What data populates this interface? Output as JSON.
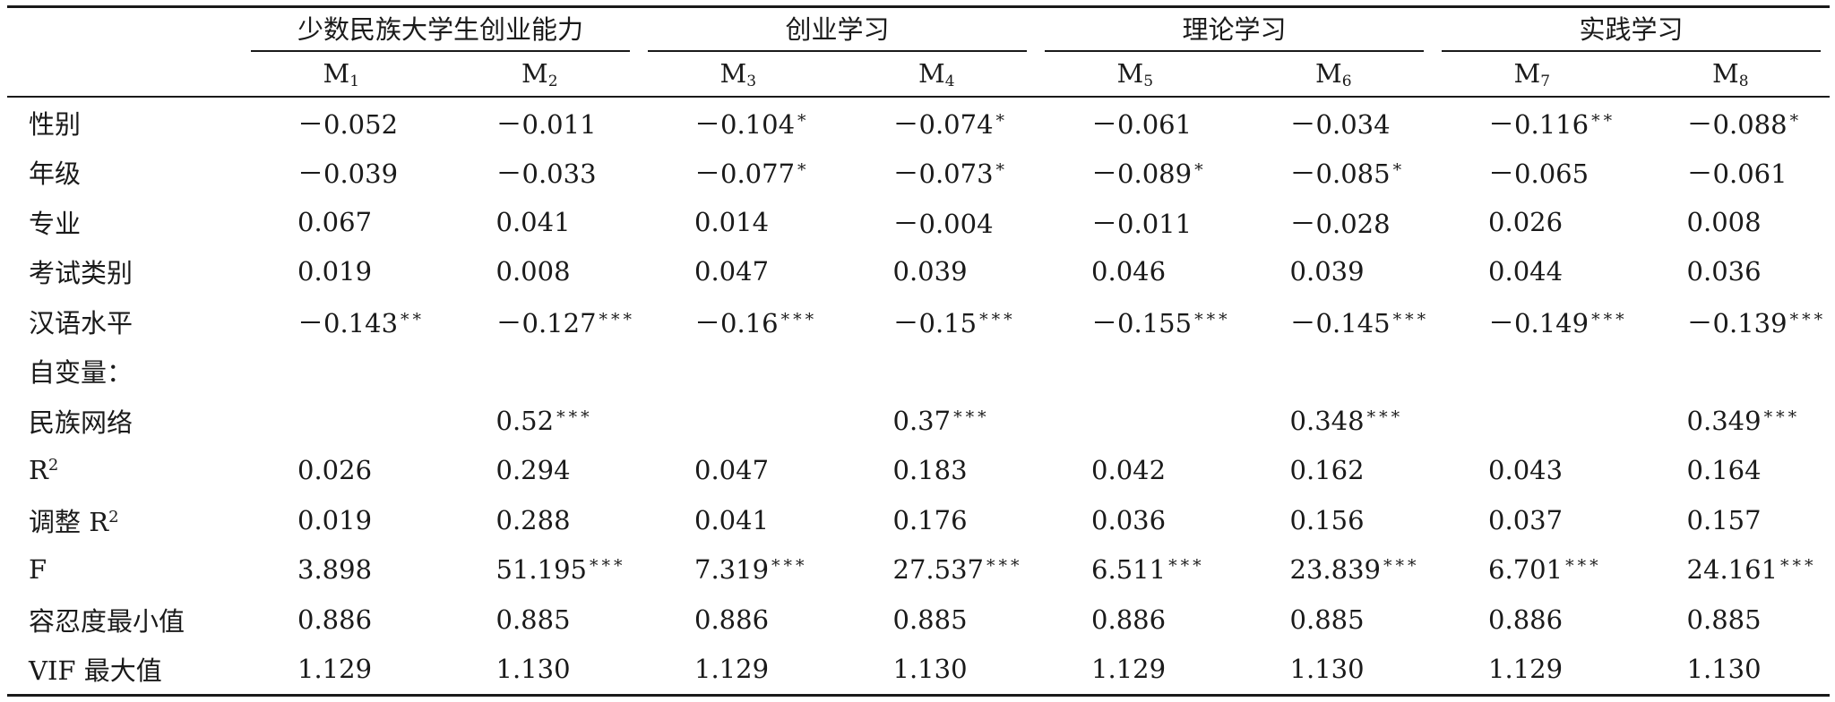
{
  "group_headers": [
    "少数民族大学生创业能力",
    "创业学习",
    "理论学习",
    "实践学习"
  ],
  "models": [
    {
      "letter": "M",
      "sub": "1"
    },
    {
      "letter": "M",
      "sub": "2"
    },
    {
      "letter": "M",
      "sub": "3"
    },
    {
      "letter": "M",
      "sub": "4"
    },
    {
      "letter": "M",
      "sub": "5"
    },
    {
      "letter": "M",
      "sub": "6"
    },
    {
      "letter": "M",
      "sub": "7"
    },
    {
      "letter": "M",
      "sub": "8"
    }
  ],
  "rows": [
    {
      "label": "性别",
      "sup": "",
      "cells": [
        {
          "v": "－0.052",
          "s": ""
        },
        {
          "v": "－0.011",
          "s": ""
        },
        {
          "v": "－0.104",
          "s": "*"
        },
        {
          "v": "－0.074",
          "s": "*"
        },
        {
          "v": "－0.061",
          "s": ""
        },
        {
          "v": "－0.034",
          "s": ""
        },
        {
          "v": "－0.116",
          "s": "**"
        },
        {
          "v": "－0.088",
          "s": "*"
        }
      ]
    },
    {
      "label": "年级",
      "sup": "",
      "cells": [
        {
          "v": "－0.039",
          "s": ""
        },
        {
          "v": "－0.033",
          "s": ""
        },
        {
          "v": "－0.077",
          "s": "*"
        },
        {
          "v": "－0.073",
          "s": "*"
        },
        {
          "v": "－0.089",
          "s": "*"
        },
        {
          "v": "－0.085",
          "s": "*"
        },
        {
          "v": "－0.065",
          "s": ""
        },
        {
          "v": "－0.061",
          "s": ""
        }
      ]
    },
    {
      "label": "专业",
      "sup": "",
      "cells": [
        {
          "v": "0.067",
          "s": ""
        },
        {
          "v": "0.041",
          "s": ""
        },
        {
          "v": "0.014",
          "s": ""
        },
        {
          "v": "－0.004",
          "s": ""
        },
        {
          "v": "－0.011",
          "s": ""
        },
        {
          "v": "－0.028",
          "s": ""
        },
        {
          "v": "0.026",
          "s": ""
        },
        {
          "v": "0.008",
          "s": ""
        }
      ]
    },
    {
      "label": "考试类别",
      "sup": "",
      "cells": [
        {
          "v": "0.019",
          "s": ""
        },
        {
          "v": "0.008",
          "s": ""
        },
        {
          "v": "0.047",
          "s": ""
        },
        {
          "v": "0.039",
          "s": ""
        },
        {
          "v": "0.046",
          "s": ""
        },
        {
          "v": "0.039",
          "s": ""
        },
        {
          "v": "0.044",
          "s": ""
        },
        {
          "v": "0.036",
          "s": ""
        }
      ]
    },
    {
      "label": "汉语水平",
      "sup": "",
      "cells": [
        {
          "v": "－0.143",
          "s": "**"
        },
        {
          "v": "－0.127",
          "s": "***"
        },
        {
          "v": "－0.16",
          "s": "***"
        },
        {
          "v": "－0.15",
          "s": "***"
        },
        {
          "v": "－0.155",
          "s": "***"
        },
        {
          "v": "－0.145",
          "s": "***"
        },
        {
          "v": "－0.149",
          "s": "***"
        },
        {
          "v": "－0.139",
          "s": "***"
        }
      ]
    },
    {
      "label": "自变量：",
      "sup": "",
      "cells": [
        {
          "v": "",
          "s": ""
        },
        {
          "v": "",
          "s": ""
        },
        {
          "v": "",
          "s": ""
        },
        {
          "v": "",
          "s": ""
        },
        {
          "v": "",
          "s": ""
        },
        {
          "v": "",
          "s": ""
        },
        {
          "v": "",
          "s": ""
        },
        {
          "v": "",
          "s": ""
        }
      ]
    },
    {
      "label": "民族网络",
      "sup": "",
      "cells": [
        {
          "v": "",
          "s": ""
        },
        {
          "v": "0.52",
          "s": "***"
        },
        {
          "v": "",
          "s": ""
        },
        {
          "v": "0.37",
          "s": "***"
        },
        {
          "v": "",
          "s": ""
        },
        {
          "v": "0.348",
          "s": "***"
        },
        {
          "v": "",
          "s": ""
        },
        {
          "v": "0.349",
          "s": "***"
        }
      ]
    },
    {
      "label": "R",
      "sup": "2",
      "cells": [
        {
          "v": "0.026",
          "s": ""
        },
        {
          "v": "0.294",
          "s": ""
        },
        {
          "v": "0.047",
          "s": ""
        },
        {
          "v": "0.183",
          "s": ""
        },
        {
          "v": "0.042",
          "s": ""
        },
        {
          "v": "0.162",
          "s": ""
        },
        {
          "v": "0.043",
          "s": ""
        },
        {
          "v": "0.164",
          "s": ""
        }
      ]
    },
    {
      "label": "调整 R",
      "sup": "2",
      "cells": [
        {
          "v": "0.019",
          "s": ""
        },
        {
          "v": "0.288",
          "s": ""
        },
        {
          "v": "0.041",
          "s": ""
        },
        {
          "v": "0.176",
          "s": ""
        },
        {
          "v": "0.036",
          "s": ""
        },
        {
          "v": "0.156",
          "s": ""
        },
        {
          "v": "0.037",
          "s": ""
        },
        {
          "v": "0.157",
          "s": ""
        }
      ]
    },
    {
      "label": "F",
      "sup": "",
      "cells": [
        {
          "v": "3.898",
          "s": ""
        },
        {
          "v": "51.195",
          "s": "***"
        },
        {
          "v": "7.319",
          "s": "***"
        },
        {
          "v": "27.537",
          "s": "***"
        },
        {
          "v": "6.511",
          "s": "***"
        },
        {
          "v": "23.839",
          "s": "***"
        },
        {
          "v": "6.701",
          "s": "***"
        },
        {
          "v": "24.161",
          "s": "***"
        }
      ]
    },
    {
      "label": "容忍度最小值",
      "sup": "",
      "cells": [
        {
          "v": "0.886",
          "s": ""
        },
        {
          "v": "0.885",
          "s": ""
        },
        {
          "v": "0.886",
          "s": ""
        },
        {
          "v": "0.885",
          "s": ""
        },
        {
          "v": "0.886",
          "s": ""
        },
        {
          "v": "0.885",
          "s": ""
        },
        {
          "v": "0.886",
          "s": ""
        },
        {
          "v": "0.885",
          "s": ""
        }
      ]
    },
    {
      "label": "VIF 最大值",
      "sup": "",
      "cells": [
        {
          "v": "1.129",
          "s": ""
        },
        {
          "v": "1.130",
          "s": ""
        },
        {
          "v": "1.129",
          "s": ""
        },
        {
          "v": "1.130",
          "s": ""
        },
        {
          "v": "1.129",
          "s": ""
        },
        {
          "v": "1.130",
          "s": ""
        },
        {
          "v": "1.129",
          "s": ""
        },
        {
          "v": "1.130",
          "s": ""
        }
      ]
    }
  ]
}
